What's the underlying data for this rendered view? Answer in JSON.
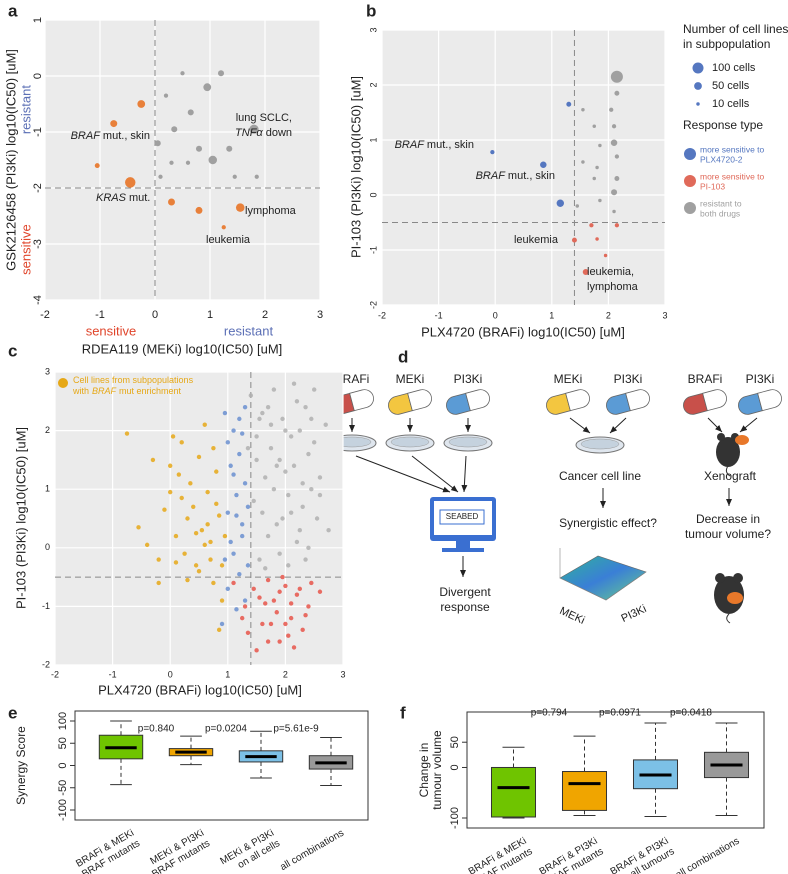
{
  "chart_data": [
    {
      "label": "a",
      "type": "scatter",
      "xlabel": "RDEA119 (MEKi) log10(IC50) [uM]",
      "ylabel": "GSK2126458 (PI3Ki) log10(IC50) [uM]",
      "xlim": [
        -2,
        3
      ],
      "ylim": [
        -4,
        1
      ],
      "xticks": [
        -2,
        -1,
        0,
        1,
        2,
        3
      ],
      "yticks": [
        -4,
        -3,
        -2,
        -1,
        0,
        1
      ],
      "grid": true,
      "ref_lines": {
        "x": 0,
        "y": -2
      },
      "x_side_labels": [
        {
          "text": "sensitive",
          "color": "#e0452b"
        },
        {
          "text": "resistant",
          "color": "#5b6fb5"
        }
      ],
      "y_side_labels": [
        {
          "text": "resistant",
          "color": "#5b6fb5"
        },
        {
          "text": "sensitive",
          "color": "#e0452b"
        }
      ],
      "series": [
        {
          "color": "#e8803a",
          "x": [
            -0.75,
            -0.25,
            -1.05,
            -0.45,
            0.3,
            0.8,
            1.55,
            1.25
          ],
          "values": [
            -0.85,
            -0.5,
            -1.6,
            -1.9,
            -2.25,
            -2.4,
            -2.35,
            -2.7
          ],
          "sizes": [
            40,
            50,
            20,
            90,
            40,
            40,
            60,
            15
          ]
        },
        {
          "color": "#a0a0a0",
          "x": [
            1.2,
            0.5,
            0.95,
            0.2,
            0.65,
            0.35,
            1.8,
            0.05,
            0.8,
            1.35,
            1.05,
            0.3,
            0.6,
            1.45,
            1.85,
            0.1
          ],
          "values": [
            0.05,
            0.05,
            -0.2,
            -0.35,
            -0.65,
            -0.95,
            -0.95,
            -1.2,
            -1.3,
            -1.3,
            -1.5,
            -1.55,
            -1.55,
            -1.8,
            -1.8,
            -1.8
          ],
          "sizes": [
            30,
            15,
            50,
            15,
            30,
            30,
            70,
            30,
            30,
            30,
            60,
            15,
            15,
            15,
            15,
            15
          ]
        }
      ],
      "annotations": [
        {
          "lines": [
            [
              {
                "text": "BRAF",
                "italic": true
              },
              "mut., skin"
            ]
          ]
        },
        {
          "lines": [
            [
              "lung SCLC,"
            ],
            [
              {
                "text": "TNFα",
                "italic": true
              },
              "down"
            ]
          ]
        },
        {
          "lines": [
            [
              {
                "text": "KRAS",
                "italic": true
              },
              "mut."
            ]
          ]
        },
        {
          "lines": [
            [
              "lymphoma"
            ]
          ]
        },
        {
          "lines": [
            [
              "leukemia"
            ]
          ]
        }
      ]
    },
    {
      "label": "b",
      "type": "scatter",
      "xlabel": "PLX4720 (BRAFi) log10(IC50) [uM]",
      "ylabel": "PI-103 (PI3Ki) log10(IC50) [uM]",
      "xlim": [
        -2,
        3
      ],
      "ylim": [
        -2,
        3
      ],
      "xticks": [
        -2,
        -1,
        0,
        1,
        2,
        3
      ],
      "yticks": [
        -2,
        -1,
        0,
        1,
        2,
        3
      ],
      "grid": true,
      "ref_lines": {
        "x": 1.4,
        "y": -0.5
      },
      "size_legend": {
        "title": [
          "Number of cell lines",
          "in subpopulation"
        ],
        "color": "#5577c0",
        "entries": [
          {
            "size": 100,
            "label": "100 cells"
          },
          {
            "size": 50,
            "label": "50 cells"
          },
          {
            "size": 10,
            "label": "10 cells"
          }
        ]
      },
      "legend_title": "Response type",
      "series": [
        {
          "name": [
            "more sensitive to",
            "PLX4720-2"
          ],
          "color": "#5577c0",
          "x": [
            1.3,
            -0.05,
            0.85,
            1.15
          ],
          "values": [
            1.65,
            0.78,
            0.55,
            -0.15
          ],
          "sizes": [
            20,
            15,
            35,
            45
          ]
        },
        {
          "name": [
            "more sensitive to",
            "PI-103"
          ],
          "color": "#e06a5a",
          "x": [
            1.7,
            2.15,
            1.4,
            1.8,
            1.95,
            1.6
          ],
          "values": [
            -0.55,
            -0.55,
            -0.82,
            -0.8,
            -1.1,
            -1.4
          ],
          "sizes": [
            15,
            15,
            20,
            10,
            10,
            30
          ]
        },
        {
          "name": [
            "resistant to",
            "both drugs"
          ],
          "color": "#a0a0a0",
          "x": [
            2.15,
            2.15,
            1.55,
            2.05,
            2.1,
            1.75,
            2.1,
            1.85,
            2.15,
            1.55,
            1.8,
            2.15,
            1.75,
            2.1,
            1.85,
            1.45,
            2.1
          ],
          "values": [
            2.15,
            1.85,
            1.55,
            1.55,
            1.25,
            1.25,
            0.95,
            0.9,
            0.7,
            0.6,
            0.5,
            0.3,
            0.3,
            0.05,
            -0.1,
            -0.2,
            -0.3
          ],
          "sizes": [
            120,
            20,
            10,
            15,
            15,
            10,
            35,
            10,
            15,
            10,
            10,
            20,
            10,
            30,
            10,
            10,
            10
          ]
        }
      ],
      "annotations": [
        {
          "lines": [
            [
              {
                "text": "BRAF",
                "italic": true
              },
              "mut., skin"
            ]
          ]
        },
        {
          "lines": [
            [
              {
                "text": "BRAF",
                "italic": true
              },
              "mut., skin"
            ]
          ]
        },
        {
          "lines": [
            [
              "leukemia"
            ]
          ]
        },
        {
          "lines": [
            [
              "leukemia,"
            ],
            [
              "lymphoma"
            ]
          ]
        }
      ]
    },
    {
      "label": "c",
      "type": "scatter",
      "xlabel": "PLX4720 (BRAFi) log10(IC50) [uM]",
      "ylabel": "PI-103 (PI3Ki) log10(IC50) [uM]",
      "xlim": [
        -2,
        3
      ],
      "ylim": [
        -2,
        3
      ],
      "xticks": [
        -2,
        -1,
        0,
        1,
        2,
        3
      ],
      "yticks": [
        -2,
        -1,
        0,
        1,
        2,
        3
      ],
      "grid": true,
      "ref_lines": {
        "x": 1.4,
        "y": -0.5
      },
      "legend": {
        "lines": [
          [
            "Cell lines from subpopulations"
          ],
          [
            "with",
            {
              "text": "BRAF",
              "italic": true
            },
            "mut enrichment"
          ]
        ]
      },
      "series": [
        {
          "color": "#e6a817",
          "x": [
            -0.75,
            -0.55,
            -0.4,
            -0.3,
            -0.2,
            -0.1,
            0,
            0.05,
            0.1,
            0.15,
            0.2,
            0.25,
            0.3,
            0.35,
            0.4,
            0.45,
            0.5,
            0.55,
            0.6,
            0.65,
            0.7,
            0.75,
            0.8,
            0.85,
            0.9,
            0.95,
            0.5,
            0.3,
            0.1,
            -0.2,
            0.6,
            0.7,
            0.8,
            0.9,
            0.85,
            0.75,
            0.65,
            0.45,
            0.2,
            0
          ],
          "values": [
            1.95,
            0.35,
            0.05,
            1.5,
            -0.2,
            0.65,
            0.95,
            1.9,
            0.2,
            1.25,
            0.85,
            -0.1,
            0.5,
            1.1,
            0.7,
            -0.3,
            1.55,
            0.3,
            2.1,
            0.95,
            0.1,
            -0.6,
            1.3,
            0.55,
            -0.9,
            0.2,
            -0.4,
            -0.55,
            -0.25,
            -0.6,
            0.05,
            -0.2,
            0.75,
            -0.3,
            -1.4,
            1.7,
            0.4,
            0.25,
            1.8,
            1.4
          ]
        },
        {
          "color": "#6a8fd0",
          "x": [
            0.95,
            1.0,
            1.05,
            1.1,
            1.15,
            1.2,
            1.25,
            1.3,
            1.35,
            1.0,
            1.1,
            1.2,
            1.3,
            0.9,
            1.05,
            1.15,
            1.25,
            1.35,
            1.0,
            1.2,
            1.3,
            1.1,
            0.95,
            1.25,
            1.15
          ],
          "values": [
            2.3,
            1.8,
            1.4,
            2.0,
            0.9,
            1.6,
            0.4,
            1.1,
            -0.3,
            0.6,
            -0.1,
            -0.45,
            2.4,
            -1.3,
            0.1,
            -1.05,
            1.95,
            0.7,
            -0.7,
            2.2,
            -0.9,
            1.25,
            -0.2,
            0.2,
            0.55
          ]
        },
        {
          "color": "#e8554a",
          "x": [
            1.1,
            1.3,
            1.45,
            1.6,
            1.7,
            1.8,
            1.9,
            2.0,
            2.1,
            2.2,
            2.3,
            2.45,
            1.5,
            1.65,
            1.85,
            2.05,
            2.25,
            2.4,
            1.35,
            1.75,
            1.95,
            2.15,
            2.35,
            1.55,
            1.9,
            2.1,
            1.25,
            1.7,
            2.0,
            2.6
          ],
          "values": [
            -0.6,
            -1.0,
            -0.7,
            -1.3,
            -0.55,
            -0.9,
            -1.6,
            -0.65,
            -1.2,
            -0.8,
            -1.4,
            -0.6,
            -1.75,
            -0.95,
            -1.1,
            -1.5,
            -0.7,
            -1.0,
            -1.45,
            -1.3,
            -0.5,
            -1.7,
            -1.15,
            -0.85,
            -0.75,
            -0.95,
            -1.2,
            -1.6,
            -1.3,
            -0.75
          ]
        },
        {
          "color": "#b0b0b0",
          "x": [
            1.4,
            1.5,
            1.6,
            1.7,
            1.8,
            1.9,
            2.0,
            2.1,
            2.2,
            2.3,
            2.4,
            2.5,
            2.6,
            2.7,
            1.45,
            1.55,
            1.65,
            1.75,
            1.85,
            1.95,
            2.05,
            2.15,
            2.25,
            2.35,
            2.45,
            2.55,
            1.5,
            1.7,
            1.9,
            2.1,
            2.3,
            2.5,
            1.6,
            1.8,
            2.0,
            2.2,
            2.4,
            2.6,
            1.35,
            1.75,
            2.15,
            2.75,
            1.65,
            2.05,
            2.45,
            1.95,
            1.85,
            2.25,
            2.35,
            1.55
          ],
          "values": [
            2.6,
            1.9,
            2.3,
            0.2,
            2.7,
            1.5,
            2.0,
            0.6,
            2.5,
            1.1,
            0.0,
            1.8,
            0.9,
            2.1,
            0.8,
            -0.2,
            1.2,
            1.7,
            0.4,
            2.2,
            -0.3,
            1.4,
            0.3,
            2.4,
            1.0,
            0.5,
            1.5,
            2.4,
            -0.1,
            1.9,
            0.7,
            2.7,
            0.6,
            1.0,
            1.3,
            0.1,
            1.6,
            1.2,
            1.7,
            2.1,
            2.8,
            0.3,
            -0.35,
            0.9,
            2.2,
            0.5,
            1.4,
            2.0,
            -0.2,
            2.2
          ]
        }
      ]
    },
    {
      "label": "e",
      "type": "box",
      "ylabel": [
        "Synergy Score"
      ],
      "ylim": [
        -100,
        100
      ],
      "yticks": [
        -100,
        -50,
        0,
        50,
        100
      ],
      "categories": [
        [
          "BRAFi & MEKi",
          "on BRAF mutants"
        ],
        [
          "MEKi & PI3Ki",
          "on BRAF mutants"
        ],
        [
          "MEKi & PI3Ki",
          "on all cells"
        ],
        [
          "all combinations"
        ]
      ],
      "pvalues": [
        "p=0.840",
        "p=0.0204",
        "p=5.61e-9"
      ],
      "boxes": [
        {
          "color": "#6fc400",
          "whisker_low": -43,
          "q1": 15,
          "median": 40,
          "q3": 68,
          "whisker_high": 100
        },
        {
          "color": "#f0a500",
          "whisker_low": 2,
          "q1": 22,
          "median": 30,
          "q3": 38,
          "whisker_high": 66
        },
        {
          "color": "#7cc0e6",
          "whisker_low": -28,
          "q1": 8,
          "median": 20,
          "q3": 33,
          "whisker_high": 77
        },
        {
          "color": "#999999",
          "whisker_low": -45,
          "q1": -8,
          "median": 6,
          "q3": 22,
          "whisker_high": 63
        }
      ]
    },
    {
      "label": "f",
      "type": "box",
      "ylabel": [
        "Change in",
        "tumour volume"
      ],
      "ylim": [
        -100,
        90
      ],
      "yticks": [
        -100,
        0,
        50
      ],
      "categories": [
        [
          "BRAFi & MEKi",
          "on BRAF mutants"
        ],
        [
          "BRAFi & PI3Ki",
          "on BRAF mutants"
        ],
        [
          "BRAFi & PI3Ki",
          "on all tumours"
        ],
        [
          "all combinations"
        ]
      ],
      "pvalues": [
        "p=0.794",
        "p=0.0971",
        "p=0.0418"
      ],
      "boxes": [
        {
          "color": "#6fc400",
          "whisker_low": -100,
          "q1": -98,
          "median": -40,
          "q3": 0,
          "whisker_high": 40
        },
        {
          "color": "#f0a500",
          "whisker_low": -95,
          "q1": -85,
          "median": -32,
          "q3": -8,
          "whisker_high": 62
        },
        {
          "color": "#7cc0e6",
          "whisker_low": -97,
          "q1": -42,
          "median": -15,
          "q3": 15,
          "whisker_high": 88
        },
        {
          "color": "#999999",
          "whisker_low": -95,
          "q1": -20,
          "median": 5,
          "q3": 30,
          "whisker_high": 88
        }
      ]
    }
  ],
  "diagram": {
    "label": "d",
    "drugs_left": [
      "BRAFi",
      "MEKi",
      "PI3Ki"
    ],
    "screen": "SEABED",
    "left_result": [
      "Divergent",
      "response"
    ],
    "drugs_middle": [
      "MEKi",
      "PI3Ki"
    ],
    "middle_model": "Cancer cell line",
    "middle_result": "Synergistic effect?",
    "surface_axes": [
      "MEKi",
      "PI3Ki"
    ],
    "drugs_right": [
      "BRAFi",
      "PI3Ki"
    ],
    "right_model": "Xenograft",
    "right_result": [
      "Decrease in",
      "tumour volume?"
    ]
  }
}
